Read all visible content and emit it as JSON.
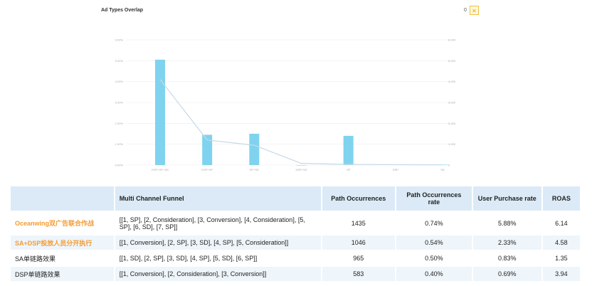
{
  "page": {
    "title": "Ad Types Overlap",
    "control_value": "0",
    "control_icon": "close-icon"
  },
  "chart_data": {
    "type": "bar",
    "categories": [
      "DSP+SP+SD",
      "DSP+SP",
      "SP+SD",
      "DSP+SD",
      "SP",
      "DSP",
      "SD"
    ],
    "bar_values": [
      5.05,
      1.45,
      1.5,
      0,
      1.4,
      0.02,
      0.02
    ],
    "line_values": [
      4.1,
      1.2,
      0.95,
      0.08,
      0.03,
      0.02,
      0.01
    ],
    "left_ticks": [
      "0.00%",
      "1.00%",
      "2.00%",
      "3.00%",
      "4.00%",
      "5.00%",
      "6.00%"
    ],
    "right_ticks": [
      "0",
      "1,000",
      "2,000",
      "3,000",
      "4,000",
      "5,000",
      "6,000"
    ],
    "ylim": [
      0,
      6
    ],
    "colors": {
      "bar": "#7fd3ef",
      "line": "#c5d9e6",
      "grid": "#eeeeee"
    }
  },
  "table": {
    "headers": [
      "",
      "Multi Channel Funnel",
      "Path Occurrences",
      "Path Occurrences rate",
      "User Purchase rate",
      "ROAS"
    ],
    "rows": [
      {
        "name": "Oceanwing双广告联合作战",
        "funnel": "[[1, SP], [2, Consideration], [3, Conversion], [4, Consideration], [5, SP], [6, SD], [7, SP]]",
        "occ": "1435",
        "occ_rate": "0.74%",
        "purchase_rate": "5.88%",
        "roas": "6.14"
      },
      {
        "name": "SA+DSP投放人员分开执行",
        "funnel": "[[1, Conversion], [2, SP], [3, SD], [4, SP], [5, Consideration]]",
        "occ": "1046",
        "occ_rate": "0.54%",
        "purchase_rate": "2.33%",
        "roas": "4.58"
      },
      {
        "name": "SA单链路效果",
        "funnel": "[[1, SD], [2, SP], [3, SD], [4, SP], [5, SD], [6, SP]]",
        "occ": "965",
        "occ_rate": "0.50%",
        "purchase_rate": "0.83%",
        "roas": "1.35"
      },
      {
        "name": "DSP单链路效果",
        "funnel": "[[1, Conversion], [2, Consideration], [3, Conversion]]",
        "occ": "583",
        "occ_rate": "0.40%",
        "purchase_rate": "0.69%",
        "roas": "3.94"
      }
    ],
    "highlight_color": "#f39c33"
  }
}
